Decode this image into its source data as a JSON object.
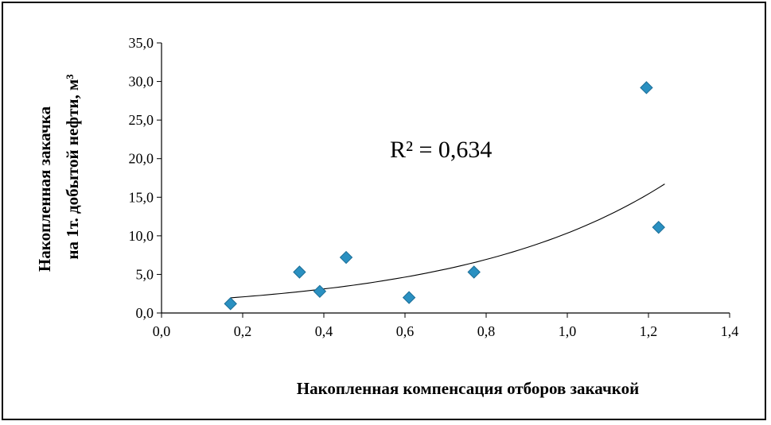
{
  "chart_data": {
    "type": "scatter",
    "title": "",
    "xlabel": "Накопленная компенсация отборов закачкой",
    "ylabel_lines": [
      "Накопленная закачка",
      "на 1т. добытой  нефти, м³"
    ],
    "xlim": [
      0,
      1.4
    ],
    "ylim": [
      0,
      35
    ],
    "xticks": [
      "0,0",
      "0,2",
      "0,4",
      "0,6",
      "0,8",
      "1,0",
      "1,2",
      "1,4"
    ],
    "yticks": [
      "0,0",
      "5,0",
      "10,0",
      "15,0",
      "20,0",
      "25,0",
      "30,0",
      "35,0"
    ],
    "xtick_values": [
      0,
      0.2,
      0.4,
      0.6,
      0.8,
      1.0,
      1.2,
      1.4
    ],
    "ytick_values": [
      0,
      5,
      10,
      15,
      20,
      25,
      30,
      35
    ],
    "points": [
      {
        "x": 0.17,
        "y": 1.2
      },
      {
        "x": 0.34,
        "y": 5.3
      },
      {
        "x": 0.39,
        "y": 2.8
      },
      {
        "x": 0.455,
        "y": 7.2
      },
      {
        "x": 0.61,
        "y": 2.0
      },
      {
        "x": 0.77,
        "y": 5.3
      },
      {
        "x": 1.195,
        "y": 29.2
      },
      {
        "x": 1.225,
        "y": 11.1
      }
    ],
    "trendline": {
      "type": "exponential",
      "a": 1.4,
      "b": 2.0,
      "x_range": [
        0.17,
        1.24
      ]
    },
    "annotation": "R² = 0,634",
    "grid": false,
    "marker_color": "#2a90c1",
    "marker_edge_color": "#1b6d96"
  }
}
